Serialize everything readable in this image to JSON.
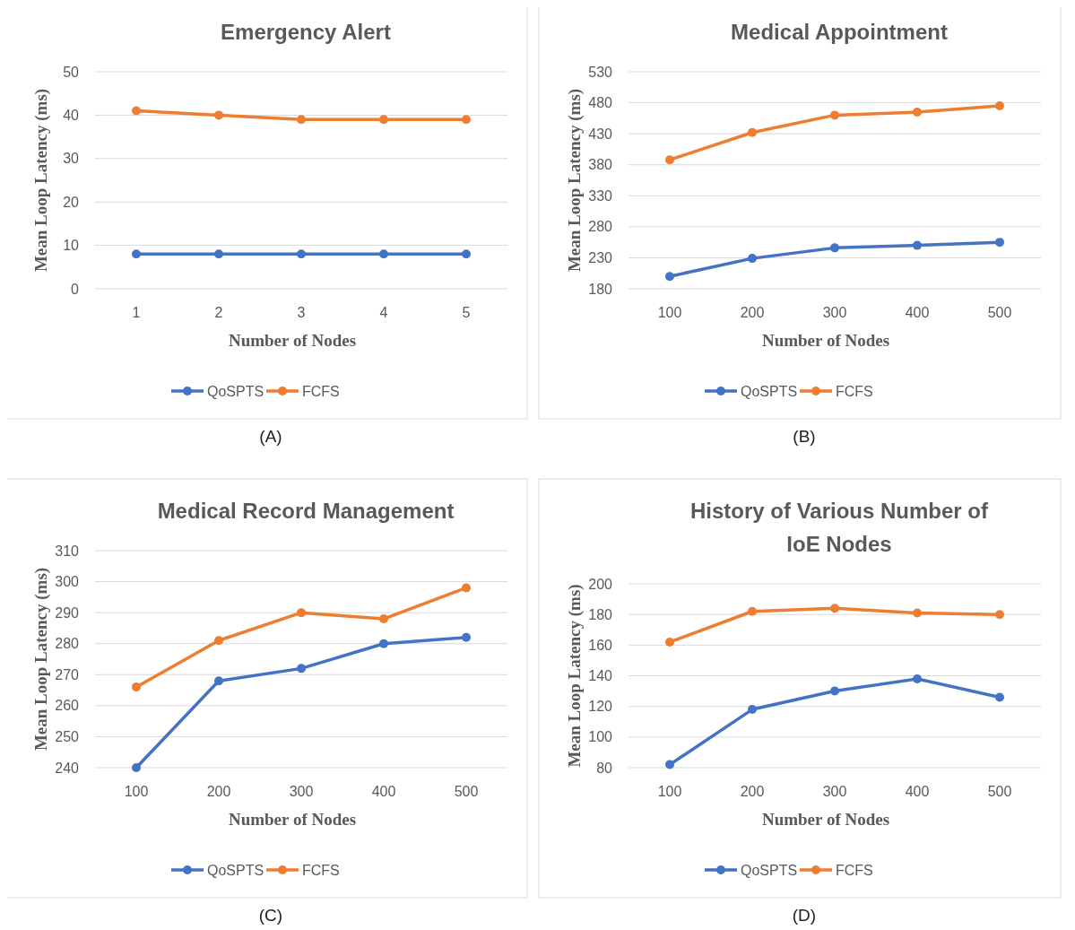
{
  "chart_data": [
    {
      "type": "line",
      "title": "Emergency Alert",
      "xlabel": "Number of Nodes",
      "ylabel": "Mean Loop Latency (ms)",
      "categories": [
        "1",
        "2",
        "3",
        "4",
        "5"
      ],
      "ylim": [
        0,
        50
      ],
      "yticks": [
        0,
        10,
        20,
        30,
        40,
        50
      ],
      "grid": "y",
      "legend": "bottom",
      "marker": "circle",
      "annotations": [
        "(A)"
      ],
      "series": [
        {
          "name": "QoSPTS",
          "color": "#4472c4",
          "values": [
            8,
            8,
            8,
            8,
            8
          ]
        },
        {
          "name": "FCFS",
          "color": "#ed7d31",
          "values": [
            41,
            40,
            39,
            39,
            39
          ]
        }
      ]
    },
    {
      "type": "line",
      "title": "Medical Appointment",
      "xlabel": "Number of Nodes",
      "ylabel": "Mean Loop Latency (ms)",
      "categories": [
        "100",
        "200",
        "300",
        "400",
        "500"
      ],
      "ylim": [
        180,
        530
      ],
      "yticks": [
        180,
        230,
        280,
        330,
        380,
        430,
        480,
        530
      ],
      "grid": "y",
      "legend": "bottom",
      "marker": "circle",
      "annotations": [
        "(B)"
      ],
      "series": [
        {
          "name": "QoSPTS",
          "color": "#4472c4",
          "values": [
            200,
            229,
            246,
            250,
            255
          ]
        },
        {
          "name": "FCFS",
          "color": "#ed7d31",
          "values": [
            388,
            432,
            460,
            465,
            475
          ]
        }
      ]
    },
    {
      "type": "line",
      "title": "Medical Record Management",
      "xlabel": "Number of Nodes",
      "ylabel": "Mean Loop Latency (ms)",
      "categories": [
        "100",
        "200",
        "300",
        "400",
        "500"
      ],
      "ylim": [
        240,
        310
      ],
      "yticks": [
        240,
        250,
        260,
        270,
        280,
        290,
        300,
        310
      ],
      "grid": "y",
      "legend": "bottom",
      "marker": "circle",
      "annotations": [
        "(C)"
      ],
      "series": [
        {
          "name": "QoSPTS",
          "color": "#4472c4",
          "values": [
            240,
            268,
            272,
            280,
            282
          ]
        },
        {
          "name": "FCFS",
          "color": "#ed7d31",
          "values": [
            266,
            281,
            290,
            288,
            298
          ]
        }
      ]
    },
    {
      "type": "line",
      "title": "History of Various Number of IoE Nodes",
      "xlabel": "Number of Nodes",
      "ylabel": "Mean Loop Latency (ms)",
      "categories": [
        "100",
        "200",
        "300",
        "400",
        "500"
      ],
      "ylim": [
        80,
        200
      ],
      "yticks": [
        80,
        100,
        120,
        140,
        160,
        180,
        200
      ],
      "grid": "y",
      "legend": "bottom",
      "marker": "circle",
      "annotations": [
        "(D)"
      ],
      "series": [
        {
          "name": "QoSPTS",
          "color": "#4472c4",
          "values": [
            82,
            118,
            130,
            138,
            126
          ]
        },
        {
          "name": "FCFS",
          "color": "#ed7d31",
          "values": [
            162,
            182,
            184,
            181,
            180
          ]
        }
      ]
    }
  ]
}
